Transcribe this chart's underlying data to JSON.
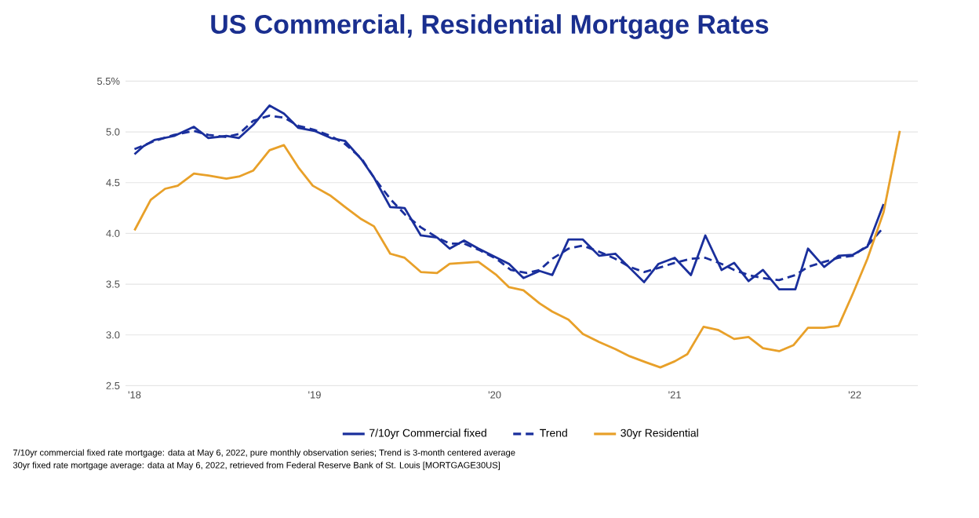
{
  "chart_data": {
    "type": "line",
    "title": "US Commercial, Residential Mortgage Rates",
    "xlim": [
      2017.95,
      2022.35
    ],
    "xticks": [
      {
        "value": 2018,
        "label": "'18"
      },
      {
        "value": 2019,
        "label": "'19"
      },
      {
        "value": 2020,
        "label": "'20"
      },
      {
        "value": 2021,
        "label": "'21"
      },
      {
        "value": 2022,
        "label": "'22"
      }
    ],
    "ylim": [
      2.5,
      5.5
    ],
    "yticks": [
      2.5,
      {
        "value": 3,
        "label": "3.0"
      },
      3.5,
      {
        "value": 4,
        "label": "4.0"
      },
      4.5,
      {
        "value": 5,
        "label": "5.0"
      },
      {
        "value": 5.5,
        "label": "5.5%"
      }
    ],
    "grid": "y",
    "legend": "bottom",
    "series": [
      {
        "name": "7/10yr Commercial fixed",
        "color": "#1a2f9c",
        "line_style": "solid",
        "x": [
          2018.0,
          2018.05,
          2018.11,
          2018.22,
          2018.33,
          2018.41,
          2018.51,
          2018.58,
          2018.66,
          2018.75,
          2018.83,
          2018.91,
          2019.0,
          2019.09,
          2019.17,
          2019.26,
          2019.33,
          2019.42,
          2019.5,
          2019.59,
          2019.68,
          2019.75,
          2019.83,
          2019.91,
          2020.08,
          2020.16,
          2020.25,
          2020.32,
          2020.41,
          2020.49,
          2020.58,
          2020.67,
          2020.75,
          2020.83,
          2020.91,
          2021.0,
          2021.09,
          2021.17,
          2021.26,
          2021.33,
          2021.41,
          2021.49,
          2021.58,
          2021.67,
          2021.74,
          2021.83,
          2021.91,
          2021.99,
          2022.07,
          2022.16
        ],
        "values": [
          4.78,
          4.86,
          4.92,
          4.96,
          5.05,
          4.94,
          4.96,
          4.94,
          5.07,
          5.26,
          5.18,
          5.04,
          5.01,
          4.94,
          4.91,
          4.73,
          4.55,
          4.26,
          4.25,
          3.98,
          3.96,
          3.85,
          3.93,
          3.85,
          3.7,
          3.56,
          3.63,
          3.59,
          3.94,
          3.94,
          3.78,
          3.8,
          3.66,
          3.52,
          3.7,
          3.76,
          3.59,
          3.98,
          3.64,
          3.71,
          3.53,
          3.64,
          3.45,
          3.45,
          3.85,
          3.67,
          3.78,
          3.79,
          3.87,
          4.29
        ]
      },
      {
        "name": "Trend",
        "color": "#1a2f9c",
        "line_style": "dashed",
        "x": [
          2018.0,
          2018.11,
          2018.22,
          2018.33,
          2018.41,
          2018.51,
          2018.58,
          2018.66,
          2018.75,
          2018.83,
          2018.91,
          2019.0,
          2019.09,
          2019.17,
          2019.26,
          2019.33,
          2019.42,
          2019.5,
          2019.59,
          2019.68,
          2019.75,
          2019.83,
          2019.91,
          2020.01,
          2020.09,
          2020.18,
          2020.25,
          2020.32,
          2020.41,
          2020.49,
          2020.58,
          2020.67,
          2020.75,
          2020.83,
          2020.91,
          2021.0,
          2021.09,
          2021.17,
          2021.26,
          2021.33,
          2021.41,
          2021.49,
          2021.58,
          2021.67,
          2021.74,
          2021.83,
          2021.91,
          2021.99,
          2022.07,
          2022.16
        ],
        "values": [
          4.83,
          4.91,
          4.97,
          5.01,
          4.97,
          4.95,
          4.98,
          5.11,
          5.16,
          5.14,
          5.06,
          5.02,
          4.96,
          4.88,
          4.74,
          4.55,
          4.34,
          4.19,
          4.06,
          3.96,
          3.9,
          3.9,
          3.84,
          3.75,
          3.64,
          3.61,
          3.64,
          3.75,
          3.85,
          3.88,
          3.82,
          3.75,
          3.67,
          3.62,
          3.66,
          3.71,
          3.75,
          3.76,
          3.7,
          3.64,
          3.59,
          3.56,
          3.54,
          3.59,
          3.67,
          3.72,
          3.76,
          3.78,
          3.88,
          4.06
        ]
      },
      {
        "name": "30yr Residential",
        "color": "#e8a029",
        "line_style": "solid",
        "x": [
          2018.0,
          2018.09,
          2018.17,
          2018.24,
          2018.33,
          2018.41,
          2018.51,
          2018.58,
          2018.66,
          2018.75,
          2018.83,
          2018.91,
          2018.99,
          2019.09,
          2019.17,
          2019.26,
          2019.33,
          2019.42,
          2019.5,
          2019.59,
          2019.68,
          2019.75,
          2019.83,
          2019.91,
          2020.01,
          2020.08,
          2020.16,
          2020.25,
          2020.32,
          2020.41,
          2020.49,
          2020.58,
          2020.67,
          2020.75,
          2020.84,
          2020.92,
          2021.0,
          2021.07,
          2021.16,
          2021.24,
          2021.33,
          2021.41,
          2021.49,
          2021.58,
          2021.66,
          2021.74,
          2021.83,
          2021.91,
          2021.99,
          2022.07,
          2022.16,
          2022.25
        ],
        "values": [
          4.03,
          4.33,
          4.44,
          4.47,
          4.59,
          4.57,
          4.54,
          4.56,
          4.62,
          4.82,
          4.87,
          4.65,
          4.47,
          4.37,
          4.26,
          4.14,
          4.07,
          3.8,
          3.76,
          3.62,
          3.61,
          3.7,
          3.71,
          3.72,
          3.59,
          3.47,
          3.44,
          3.31,
          3.23,
          3.15,
          3.01,
          2.93,
          2.86,
          2.79,
          2.73,
          2.68,
          2.74,
          2.81,
          3.08,
          3.05,
          2.96,
          2.98,
          2.87,
          2.84,
          2.9,
          3.07,
          3.07,
          3.09,
          3.41,
          3.75,
          4.21,
          5.01
        ]
      }
    ],
    "annotations": [
      "7/10yr commercial fixed rate mortgage: data at May 6, 2022, pure monthly observation series; Trend is 3-month centered average",
      "30yr fixed rate mortgage average: data at May 6, 2022, retrieved from Federal Reserve Bank of St. Louis [MORTGAGE30US]"
    ]
  }
}
